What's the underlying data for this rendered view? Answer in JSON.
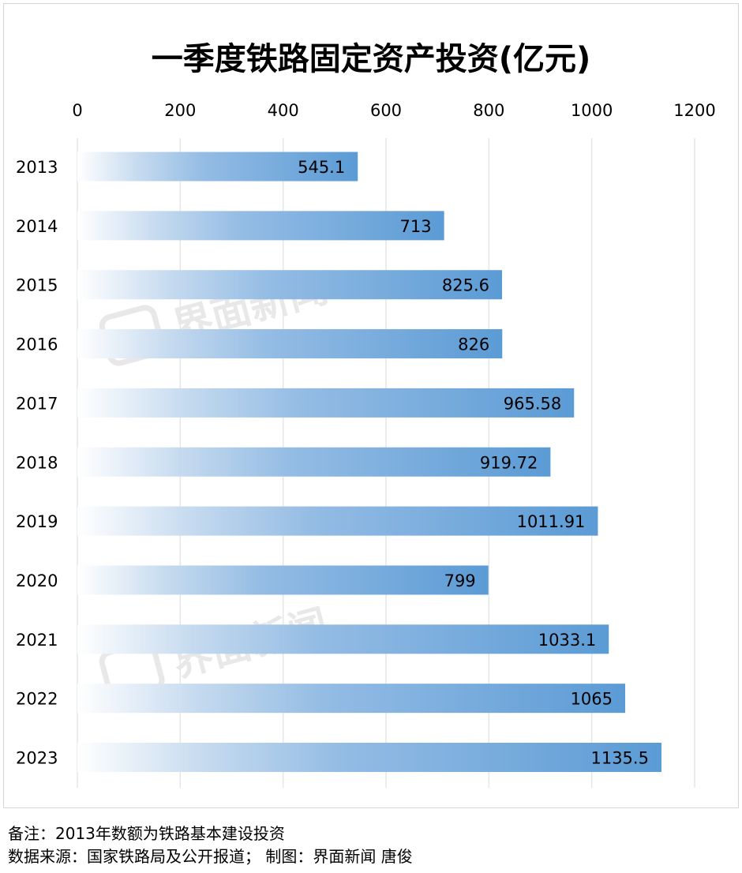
{
  "chart_data": {
    "type": "bar",
    "orientation": "horizontal",
    "title": "一季度铁路固定资产投资(亿元)",
    "categories": [
      "2013",
      "2014",
      "2015",
      "2016",
      "2017",
      "2018",
      "2019",
      "2020",
      "2021",
      "2022",
      "2023"
    ],
    "values": [
      545.1,
      713,
      825.6,
      826,
      965.58,
      919.72,
      1011.91,
      799,
      1033.1,
      1065,
      1135.5
    ],
    "data_labels": [
      "545.1",
      "713",
      "825.6",
      "826",
      "965.58",
      "919.72",
      "1011.91",
      "799",
      "1033.1",
      "1065",
      "1135.5"
    ],
    "xlim": [
      0,
      1200
    ],
    "x_ticks": [
      "0",
      "200",
      "400",
      "600",
      "800",
      "1000",
      "1200"
    ],
    "x_axis_position": "top",
    "grid": true,
    "bar_color": "#5b9bd5",
    "bar_gradient_start": "#ffffff"
  },
  "watermark": "界面新闻",
  "notes": {
    "line1": "备注：2013年数额为铁路基本建设投资",
    "line2": "数据来源：国家铁路局及公开报道；  制图：界面新闻 唐俊"
  }
}
